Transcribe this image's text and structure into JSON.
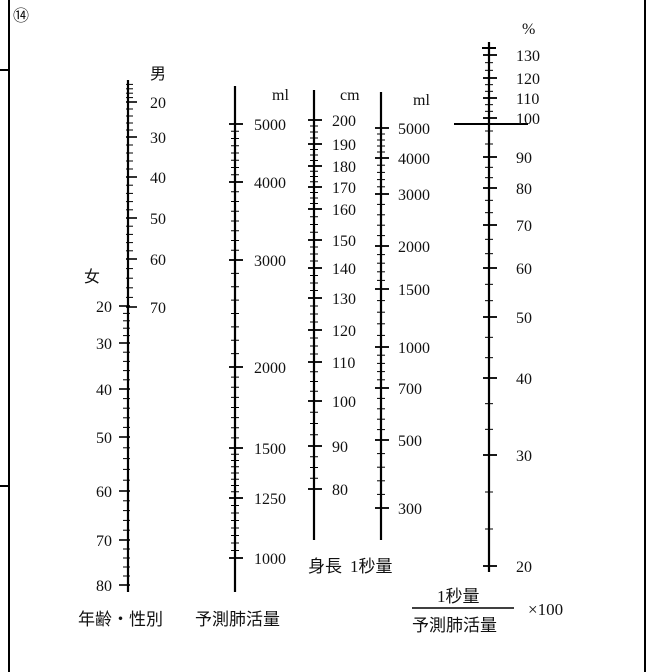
{
  "figure_number": "⑭",
  "scales": {
    "age_male": {
      "header": "男",
      "ticks": [
        "20",
        "30",
        "40",
        "50",
        "60",
        "70"
      ]
    },
    "age_female": {
      "header": "女",
      "ticks": [
        "20",
        "30",
        "40",
        "50",
        "60",
        "70",
        "80"
      ]
    },
    "predicted_vc": {
      "unit": "ml",
      "ticks": [
        "5000",
        "4000",
        "3000",
        "2000",
        "1500",
        "1250",
        "1000"
      ]
    },
    "height": {
      "unit": "cm",
      "ticks": [
        "200",
        "190",
        "180",
        "170",
        "160",
        "150",
        "140",
        "130",
        "120",
        "110",
        "100",
        "90",
        "80"
      ]
    },
    "fev1": {
      "unit": "ml",
      "ticks": [
        "5000",
        "4000",
        "3000",
        "2000",
        "1500",
        "1000",
        "700",
        "500",
        "300"
      ]
    },
    "percent": {
      "unit": "%",
      "ticks": [
        "130",
        "120",
        "110",
        "100",
        "90",
        "80",
        "70",
        "60",
        "50",
        "40",
        "30",
        "20"
      ]
    }
  },
  "captions": {
    "age_sex": "年齢・性別",
    "predicted_vc": "予測肺活量",
    "height": "身長",
    "fev1": "1秒量",
    "fraction_numerator": "1秒量",
    "fraction_denominator": "予測肺活量",
    "multiplier": "×100"
  }
}
